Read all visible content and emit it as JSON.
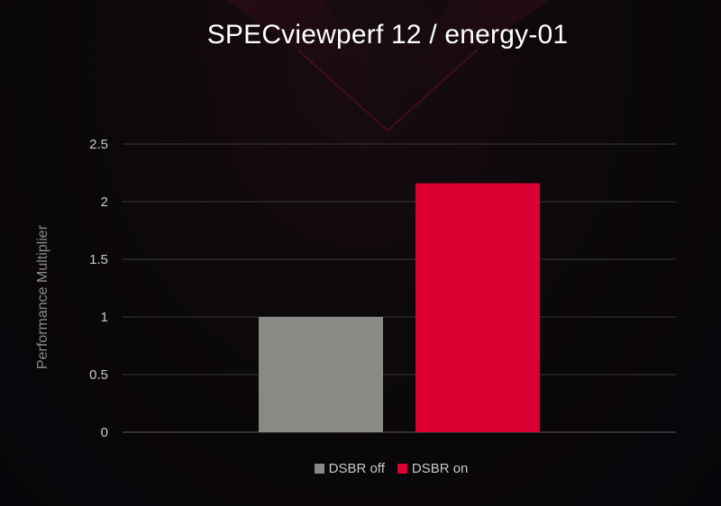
{
  "colors": {
    "series_off": "#898985",
    "series_on": "#dc0032",
    "grid": "#3a3a3a",
    "axis_line": "#5a5a5a"
  },
  "chart_data": {
    "type": "bar",
    "title": "SPECviewperf 12 / energy-01",
    "xlabel": "",
    "ylabel": "Performance Multiplier",
    "ylim": [
      0,
      2.5
    ],
    "yticks": [
      "0",
      "0.5",
      "1",
      "1.5",
      "2",
      "2.5"
    ],
    "ytick_values": [
      0,
      0.5,
      1,
      1.5,
      2,
      2.5
    ],
    "categories": [
      ""
    ],
    "grid": true,
    "legend_position": "bottom",
    "series": [
      {
        "name": "DSBR off",
        "values": [
          1.0
        ]
      },
      {
        "name": "DSBR on",
        "values": [
          2.16
        ]
      }
    ]
  }
}
